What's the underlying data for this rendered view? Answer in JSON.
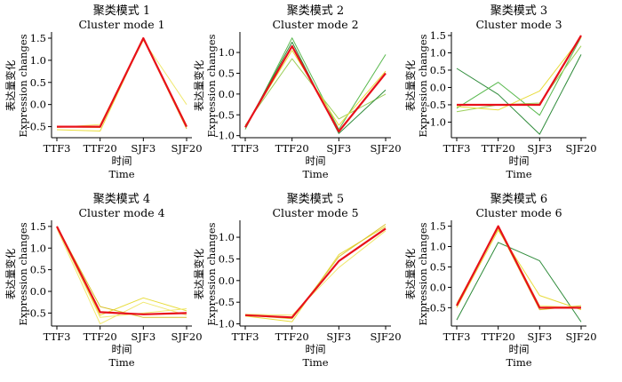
{
  "colors": {
    "mean": "#e8101a",
    "member_palette": [
      "#e8dc3c",
      "#f0e870",
      "#2e8b3a",
      "#57b84c",
      "#9ccf5a",
      "#c6d94a"
    ]
  },
  "chart_data": [
    {
      "type": "line",
      "title": "聚类模式 1",
      "subtitle": "Cluster mode 1",
      "xlabel_cn": "时间",
      "xlabel_en": "Time",
      "ylabel_cn": "表达量变化",
      "ylabel_en": "Expression changes",
      "categories": [
        "TTF3",
        "TTF20",
        "SJF3",
        "SJF20"
      ],
      "ylim": [
        -0.75,
        1.6
      ],
      "yticks": [
        "-0.5",
        "0.0",
        "0.5",
        "1.0",
        "1.5"
      ],
      "tick_values": [
        -0.5,
        0.0,
        0.5,
        1.0,
        1.5
      ],
      "mean": [
        -0.5,
        -0.5,
        1.5,
        -0.5
      ],
      "members": [
        {
          "values": [
            -0.57,
            -0.6,
            1.5,
            -0.47
          ],
          "color": "#e8dc3c"
        },
        {
          "values": [
            -0.52,
            -0.45,
            1.45,
            0.0
          ],
          "color": "#f0e870"
        },
        {
          "values": [
            -0.5,
            -0.52,
            1.48,
            -0.55
          ],
          "color": "#d9c22e"
        }
      ]
    },
    {
      "type": "line",
      "title": "聚类模式 2",
      "subtitle": "Cluster mode 2",
      "xlabel_cn": "时间",
      "xlabel_en": "Time",
      "ylabel_cn": "表达量变化",
      "ylabel_en": "Expression changes",
      "categories": [
        "TTF3",
        "TTF20",
        "SJF3",
        "SJF20"
      ],
      "ylim": [
        -1.05,
        1.45
      ],
      "yticks": [
        "-1.0",
        "-0.5",
        "0.0",
        "0.5",
        "1.0"
      ],
      "tick_values": [
        -1.0,
        -0.5,
        0.0,
        0.5,
        1.0
      ],
      "mean": [
        -0.8,
        1.15,
        -0.9,
        0.5
      ],
      "members": [
        {
          "values": [
            -0.85,
            1.35,
            -0.85,
            0.95
          ],
          "color": "#57b84c"
        },
        {
          "values": [
            -0.75,
            0.85,
            -0.6,
            0.0
          ],
          "color": "#9ccf5a"
        },
        {
          "values": [
            -0.8,
            1.25,
            -0.95,
            0.1
          ],
          "color": "#2e8b3a"
        },
        {
          "values": [
            -0.78,
            1.05,
            -0.75,
            0.55
          ],
          "color": "#e8dc3c"
        }
      ]
    },
    {
      "type": "line",
      "title": "聚类模式 3",
      "subtitle": "Cluster mode 3",
      "xlabel_cn": "时间",
      "xlabel_en": "Time",
      "ylabel_cn": "表达量变化",
      "ylabel_en": "Expression changes",
      "categories": [
        "TTF3",
        "TTF20",
        "SJF3",
        "SJF20"
      ],
      "ylim": [
        -1.45,
        1.55
      ],
      "yticks": [
        "-1.0",
        "-0.5",
        "0.0",
        "0.5",
        "1.0",
        "1.5"
      ],
      "tick_values": [
        -1.0,
        -0.5,
        0.0,
        0.5,
        1.0,
        1.5
      ],
      "mean": [
        -0.5,
        -0.5,
        -0.5,
        1.5
      ],
      "members": [
        {
          "values": [
            0.55,
            -0.2,
            -1.35,
            0.95
          ],
          "color": "#2e8b3a"
        },
        {
          "values": [
            -0.6,
            0.15,
            -0.8,
            1.45
          ],
          "color": "#57b84c"
        },
        {
          "values": [
            -0.7,
            -0.5,
            -0.45,
            1.2
          ],
          "color": "#9ccf5a"
        },
        {
          "values": [
            -0.55,
            -0.65,
            -0.1,
            1.45
          ],
          "color": "#e8dc3c"
        }
      ]
    },
    {
      "type": "line",
      "title": "聚类模式 4",
      "subtitle": "Cluster mode 4",
      "xlabel_cn": "时间",
      "xlabel_en": "Time",
      "ylabel_cn": "表达量变化",
      "ylabel_en": "Expression changes",
      "categories": [
        "TTF3",
        "TTF20",
        "SJF3",
        "SJF20"
      ],
      "ylim": [
        -0.8,
        1.6
      ],
      "yticks": [
        "-0.5",
        "0.0",
        "0.5",
        "1.0",
        "1.5"
      ],
      "tick_values": [
        -0.5,
        0.0,
        0.5,
        1.0,
        1.5
      ],
      "mean": [
        1.5,
        -0.48,
        -0.53,
        -0.5
      ],
      "members": [
        {
          "values": [
            1.45,
            -0.75,
            -0.25,
            -0.55
          ],
          "color": "#f0e870"
        },
        {
          "values": [
            1.5,
            -0.55,
            -0.15,
            -0.45
          ],
          "color": "#e8dc3c"
        },
        {
          "values": [
            1.5,
            -0.35,
            -0.6,
            -0.6
          ],
          "color": "#d9c22e"
        },
        {
          "values": [
            1.48,
            -0.6,
            -0.5,
            -0.4
          ],
          "color": "#f0e870"
        }
      ]
    },
    {
      "type": "line",
      "title": "聚类模式 5",
      "subtitle": "Cluster mode 5",
      "xlabel_cn": "时间",
      "xlabel_en": "Time",
      "ylabel_cn": "表达量变化",
      "ylabel_en": "Expression changes",
      "categories": [
        "TTF3",
        "TTF20",
        "SJF3",
        "SJF20"
      ],
      "ylim": [
        -1.05,
        1.35
      ],
      "yticks": [
        "-1.0",
        "-0.5",
        "0.0",
        "0.5",
        "1.0"
      ],
      "tick_values": [
        -1.0,
        -0.5,
        0.0,
        0.5,
        1.0
      ],
      "mean": [
        -0.8,
        -0.85,
        0.45,
        1.2
      ],
      "members": [
        {
          "values": [
            -0.82,
            -0.95,
            0.6,
            1.25
          ],
          "color": "#e8dc3c"
        },
        {
          "values": [
            -0.78,
            -0.8,
            0.3,
            1.15
          ],
          "color": "#f0e870"
        },
        {
          "values": [
            -0.8,
            -0.88,
            0.55,
            1.3
          ],
          "color": "#d9c22e"
        }
      ]
    },
    {
      "type": "line",
      "title": "聚类模式 6",
      "subtitle": "Cluster mode 6",
      "xlabel_cn": "时间",
      "xlabel_en": "Time",
      "ylabel_cn": "表达量变化",
      "ylabel_en": "Expression changes",
      "categories": [
        "TTF3",
        "TTF20",
        "SJF3",
        "SJF20"
      ],
      "ylim": [
        -0.95,
        1.6
      ],
      "yticks": [
        "-0.5",
        "0.0",
        "0.5",
        "1.0",
        "1.5"
      ],
      "tick_values": [
        -0.5,
        0.0,
        0.5,
        1.0,
        1.5
      ],
      "mean": [
        -0.45,
        1.5,
        -0.5,
        -0.5
      ],
      "members": [
        {
          "values": [
            -0.8,
            1.1,
            0.65,
            -0.85
          ],
          "color": "#2e8b3a"
        },
        {
          "values": [
            -0.5,
            1.4,
            -0.2,
            -0.55
          ],
          "color": "#e8dc3c"
        },
        {
          "values": [
            -0.45,
            1.5,
            -0.45,
            -0.5
          ],
          "color": "#f0e870"
        },
        {
          "values": [
            -0.4,
            1.45,
            -0.55,
            -0.45
          ],
          "color": "#d9c22e"
        }
      ]
    }
  ]
}
